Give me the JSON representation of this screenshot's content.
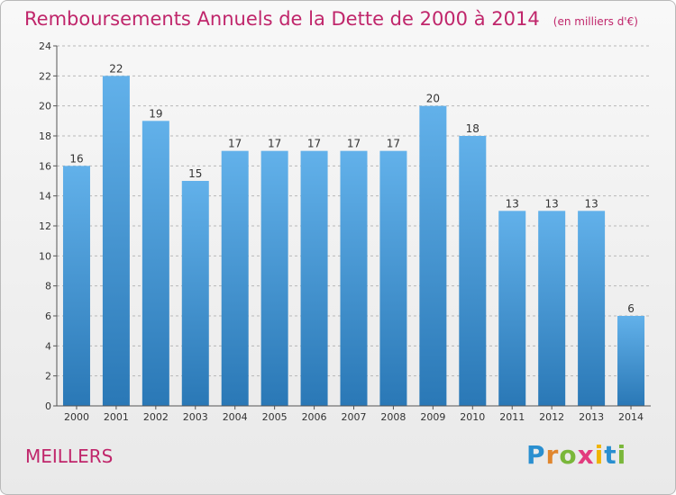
{
  "header": {
    "title": "Remboursements Annuels de la Dette de 2000 à 2014",
    "subtitle": "(en milliers d'€)"
  },
  "footer": {
    "commune": "MEILLERS",
    "logo_text": "Proxiti"
  },
  "colors": {
    "title": "#c0266b",
    "bar_top": "#62b1ea",
    "bar_bottom": "#2a78b6",
    "grid": "#b8b8b8"
  },
  "chart_data": {
    "type": "bar",
    "title": "Remboursements Annuels de la Dette de 2000 à 2014",
    "subtitle": "(en milliers d'€)",
    "categories": [
      "2000",
      "2001",
      "2002",
      "2003",
      "2004",
      "2005",
      "2006",
      "2007",
      "2008",
      "2009",
      "2010",
      "2011",
      "2012",
      "2013",
      "2014"
    ],
    "values": [
      16,
      22,
      19,
      15,
      17,
      17,
      17,
      17,
      17,
      20,
      18,
      13,
      13,
      13,
      6
    ],
    "ylim": [
      0,
      24
    ],
    "yticks": [
      0,
      2,
      4,
      6,
      8,
      10,
      12,
      14,
      16,
      18,
      20,
      22,
      24
    ],
    "xlabel": "",
    "ylabel": "",
    "grid": true,
    "data_labels": true
  }
}
